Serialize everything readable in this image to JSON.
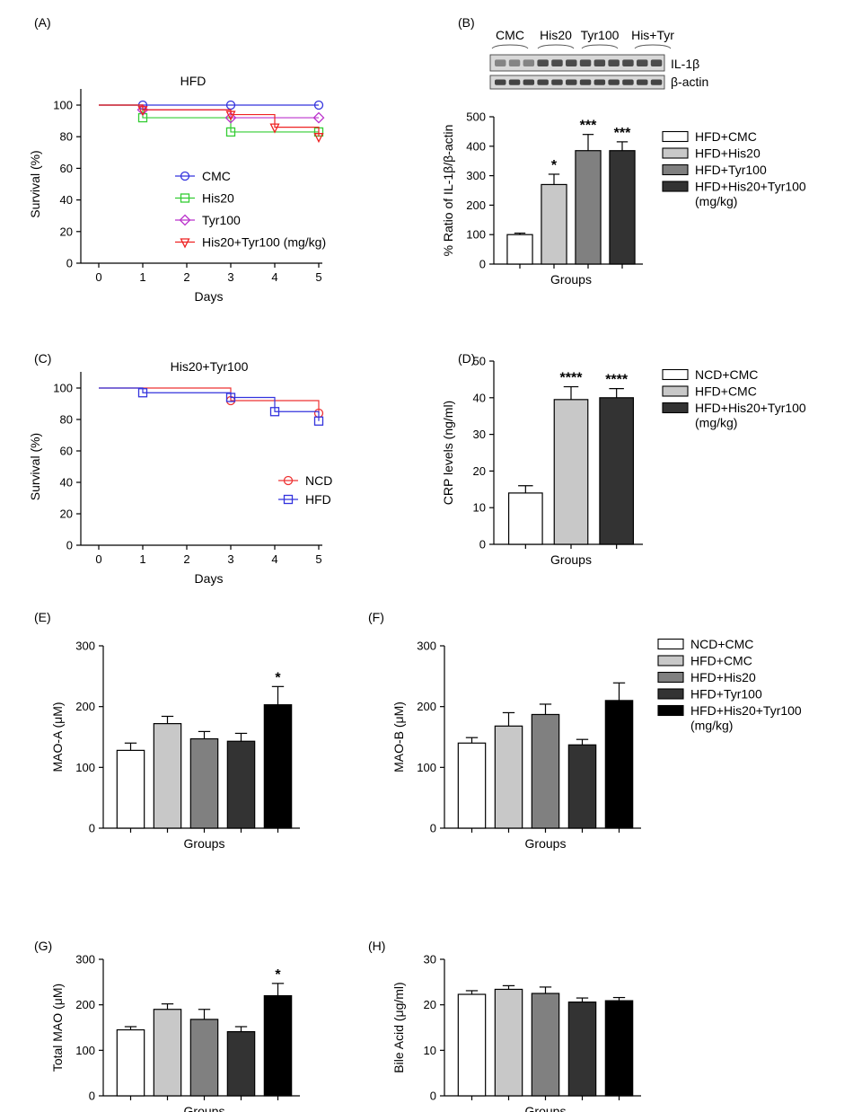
{
  "chart_data": [
    {
      "id": "A",
      "type": "line",
      "step": true,
      "panel_label": "(A)",
      "title": "HFD",
      "xlabel": "Days",
      "ylabel": "Survival (%)",
      "xlim": [
        0,
        5
      ],
      "ylim": [
        0,
        100
      ],
      "xticks": [
        "0",
        "1",
        "2",
        "3",
        "4",
        "5"
      ],
      "yticks": [
        "0",
        "20",
        "40",
        "60",
        "80",
        "100"
      ],
      "series": [
        {
          "name": "CMC",
          "color": "#3333dd",
          "marker": "circle",
          "x": [
            1,
            3,
            5
          ],
          "values": [
            100,
            100,
            100
          ]
        },
        {
          "name": "His20",
          "color": "#33cc33",
          "marker": "square",
          "x": [
            1,
            3,
            5
          ],
          "values": [
            92,
            83,
            83
          ]
        },
        {
          "name": "Tyr100",
          "color": "#bb33cc",
          "marker": "diamond",
          "x": [
            1,
            3,
            5
          ],
          "values": [
            97,
            92,
            92
          ]
        },
        {
          "name": "His20+Tyr100 (mg/kg)",
          "color": "#ee2222",
          "marker": "triangle",
          "x": [
            1,
            3,
            4,
            5
          ],
          "values": [
            97,
            94,
            86,
            80
          ]
        }
      ]
    },
    {
      "id": "B",
      "type": "bar",
      "panel_label": "(B)",
      "blot": {
        "groups": [
          "CMC",
          "His20",
          "Tyr100",
          "His+Tyr"
        ],
        "bands": [
          "IL-1β",
          "β-actin"
        ]
      },
      "xlabel": "Groups",
      "ylabel": "% Ratio of IL-1β/β-actin",
      "ylim": [
        0,
        500
      ],
      "yticks": [
        "0",
        "100",
        "200",
        "300",
        "400",
        "500"
      ],
      "categories": [
        "HFD+CMC",
        "HFD+His20",
        "HFD+Tyr100",
        "HFD+His20+Tyr100"
      ],
      "legend_note": "(mg/kg)",
      "values": [
        100,
        270,
        385,
        385
      ],
      "errors": [
        5,
        35,
        55,
        30
      ],
      "colors": [
        "#ffffff",
        "#c8c8c8",
        "#808080",
        "#333333"
      ],
      "annotations": [
        "",
        "*",
        "***",
        "***"
      ]
    },
    {
      "id": "C",
      "type": "line",
      "step": true,
      "panel_label": "(C)",
      "title": "His20+Tyr100",
      "xlabel": "Days",
      "ylabel": "Survival (%)",
      "xlim": [
        0,
        5
      ],
      "ylim": [
        0,
        100
      ],
      "xticks": [
        "0",
        "1",
        "2",
        "3",
        "4",
        "5"
      ],
      "yticks": [
        "0",
        "20",
        "40",
        "60",
        "80",
        "100"
      ],
      "series": [
        {
          "name": "NCD",
          "color": "#ee3333",
          "marker": "circle",
          "x": [
            3,
            5
          ],
          "values": [
            92,
            84
          ]
        },
        {
          "name": "HFD",
          "color": "#3333dd",
          "marker": "square",
          "x": [
            1,
            3,
            4,
            5
          ],
          "values": [
            97,
            94,
            85,
            79
          ]
        }
      ]
    },
    {
      "id": "D",
      "type": "bar",
      "panel_label": "(D)",
      "xlabel": "Groups",
      "ylabel": "CRP levels (ng/ml)",
      "ylim": [
        0,
        50
      ],
      "yticks": [
        "0",
        "10",
        "20",
        "30",
        "40",
        "50"
      ],
      "categories": [
        "NCD+CMC",
        "HFD+CMC",
        "HFD+His20+Tyr100"
      ],
      "legend_note": "(mg/kg)",
      "values": [
        14,
        39.5,
        40
      ],
      "errors": [
        2,
        3.5,
        2.5
      ],
      "colors": [
        "#ffffff",
        "#c8c8c8",
        "#333333"
      ],
      "annotations": [
        "",
        "****",
        "****"
      ]
    },
    {
      "id": "E",
      "type": "bar",
      "panel_label": "(E)",
      "xlabel": "Groups",
      "ylabel": "MAO-A (μM)",
      "ylim": [
        0,
        300
      ],
      "yticks": [
        "0",
        "100",
        "200",
        "300"
      ],
      "values": [
        128,
        172,
        147,
        143,
        203
      ],
      "errors": [
        12,
        12,
        12,
        13,
        30
      ],
      "colors": [
        "#ffffff",
        "#c8c8c8",
        "#808080",
        "#333333",
        "#000000"
      ],
      "annotations": [
        "",
        "",
        "",
        "",
        "*"
      ]
    },
    {
      "id": "F",
      "type": "bar",
      "panel_label": "(F)",
      "xlabel": "Groups",
      "ylabel": "MAO-B (μM)",
      "ylim": [
        0,
        300
      ],
      "yticks": [
        "0",
        "100",
        "200",
        "300"
      ],
      "categories": [
        "NCD+CMC",
        "HFD+CMC",
        "HFD+His20",
        "HFD+Tyr100",
        "HFD+His20+Tyr100"
      ],
      "legend_note": "(mg/kg)",
      "values": [
        140,
        168,
        187,
        137,
        210
      ],
      "errors": [
        9,
        22,
        17,
        9,
        29
      ],
      "colors": [
        "#ffffff",
        "#c8c8c8",
        "#808080",
        "#333333",
        "#000000"
      ],
      "annotations": [
        "",
        "",
        "",
        "",
        ""
      ]
    },
    {
      "id": "G",
      "type": "bar",
      "panel_label": "(G)",
      "xlabel": "Groups",
      "ylabel": "Total MAO (μM)",
      "ylim": [
        0,
        300
      ],
      "yticks": [
        "0",
        "100",
        "200",
        "300"
      ],
      "values": [
        145,
        190,
        168,
        141,
        220
      ],
      "errors": [
        7,
        12,
        22,
        11,
        27
      ],
      "colors": [
        "#ffffff",
        "#c8c8c8",
        "#808080",
        "#333333",
        "#000000"
      ],
      "annotations": [
        "",
        "",
        "",
        "",
        "*"
      ]
    },
    {
      "id": "H",
      "type": "bar",
      "panel_label": "(H)",
      "xlabel": "Groups",
      "ylabel": "Bile Acid (μg/ml)",
      "ylim": [
        0,
        30
      ],
      "yticks": [
        "0",
        "10",
        "20",
        "30"
      ],
      "values": [
        22.3,
        23.4,
        22.5,
        20.6,
        20.9
      ],
      "errors": [
        0.8,
        0.8,
        1.4,
        0.9,
        0.7
      ],
      "colors": [
        "#ffffff",
        "#c8c8c8",
        "#808080",
        "#333333",
        "#000000"
      ],
      "annotations": [
        "",
        "",
        "",
        "",
        ""
      ]
    }
  ]
}
